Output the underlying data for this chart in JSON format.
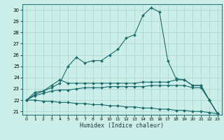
{
  "xlabel": "Humidex (Indice chaleur)",
  "bg_color": "#cceee8",
  "line_color": "#1a6b6b",
  "grid_color": "#aad4ce",
  "xlim": [
    -0.5,
    23.5
  ],
  "ylim": [
    20.7,
    30.5
  ],
  "xticks": [
    0,
    1,
    2,
    3,
    4,
    5,
    6,
    7,
    8,
    9,
    10,
    11,
    12,
    13,
    14,
    15,
    16,
    17,
    18,
    19,
    20,
    21,
    22,
    23
  ],
  "yticks": [
    21,
    22,
    23,
    24,
    25,
    26,
    27,
    28,
    29,
    30
  ],
  "lines": [
    {
      "x": [
        0,
        1,
        2,
        3,
        4,
        5,
        6,
        7,
        8,
        9,
        10,
        11,
        12,
        13,
        14,
        15,
        16,
        17,
        18,
        19,
        20,
        21,
        22,
        23
      ],
      "y": [
        22.0,
        22.5,
        22.8,
        23.1,
        23.5,
        25.0,
        25.8,
        25.3,
        25.5,
        25.5,
        26.0,
        26.5,
        27.5,
        27.8,
        29.5,
        30.2,
        29.8,
        25.5,
        23.9,
        23.8,
        23.3,
        23.3,
        22.0,
        20.8
      ]
    },
    {
      "x": [
        0,
        1,
        2,
        3,
        4,
        5,
        6,
        7,
        8,
        9,
        10,
        11,
        12,
        13,
        14,
        15,
        16,
        17,
        18,
        19,
        20,
        21,
        22,
        23
      ],
      "y": [
        22.0,
        22.7,
        22.8,
        23.3,
        23.8,
        23.5,
        23.5,
        23.5,
        23.5,
        23.5,
        23.5,
        23.5,
        23.5,
        23.5,
        23.6,
        23.6,
        23.6,
        23.6,
        23.8,
        23.8,
        23.3,
        23.3,
        22.0,
        20.8
      ]
    },
    {
      "x": [
        0,
        1,
        2,
        3,
        4,
        5,
        6,
        7,
        8,
        9,
        10,
        11,
        12,
        13,
        14,
        15,
        16,
        17,
        18,
        19,
        20,
        21,
        22,
        23
      ],
      "y": [
        22.0,
        22.4,
        22.6,
        22.8,
        22.9,
        22.9,
        23.0,
        23.1,
        23.1,
        23.1,
        23.2,
        23.2,
        23.2,
        23.2,
        23.2,
        23.3,
        23.3,
        23.3,
        23.3,
        23.3,
        23.1,
        23.1,
        22.0,
        20.8
      ]
    },
    {
      "x": [
        0,
        1,
        2,
        3,
        4,
        5,
        6,
        7,
        8,
        9,
        10,
        11,
        12,
        13,
        14,
        15,
        16,
        17,
        18,
        19,
        20,
        21,
        22,
        23
      ],
      "y": [
        22.0,
        22.0,
        21.9,
        21.9,
        21.8,
        21.8,
        21.7,
        21.7,
        21.6,
        21.6,
        21.5,
        21.5,
        21.4,
        21.4,
        21.3,
        21.3,
        21.2,
        21.2,
        21.1,
        21.1,
        21.0,
        21.0,
        20.9,
        20.8
      ]
    }
  ]
}
